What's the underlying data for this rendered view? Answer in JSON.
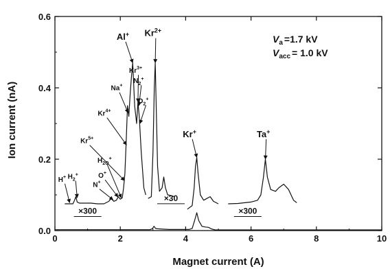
{
  "chart_data": {
    "type": "line",
    "xlabel": "Magnet current  (A)",
    "ylabel": "Ion current  (nA)",
    "xlim": [
      0,
      10
    ],
    "ylim": [
      0,
      0.6
    ],
    "x_ticks": [
      "0",
      "2",
      "4",
      "6",
      "8",
      "10"
    ],
    "y_ticks": [
      "0.0",
      "0.2",
      "0.4",
      "0.6"
    ],
    "grid": false,
    "parameters": [
      {
        "symbol": "V",
        "sub": "a",
        "value": "=1.7 kV"
      },
      {
        "symbol": "V",
        "sub": "acc",
        "value": "= 1.0 kV"
      }
    ],
    "series": [
      {
        "values": [
          [
            0.0,
            0.0025
          ],
          [
            2.9,
            0.0025
          ],
          [
            2.98,
            0.005
          ],
          [
            3.03,
            0.012
          ],
          [
            3.08,
            0.006
          ],
          [
            3.14,
            0.005
          ],
          [
            3.3,
            0.004
          ],
          [
            3.5,
            0.003
          ],
          [
            4.1,
            0.003
          ],
          [
            4.2,
            0.006
          ],
          [
            4.28,
            0.03
          ],
          [
            4.34,
            0.05
          ],
          [
            4.4,
            0.028
          ],
          [
            4.5,
            0.012
          ],
          [
            4.6,
            0.01
          ],
          [
            4.7,
            0.009
          ],
          [
            4.78,
            0.005
          ],
          [
            4.9,
            0.002
          ],
          [
            10.0,
            0.002
          ]
        ]
      },
      {
        "values": [
          [
            0.3,
            0.075
          ],
          [
            0.55,
            0.075
          ],
          [
            0.6,
            0.085
          ],
          [
            0.64,
            0.095
          ],
          [
            0.68,
            0.08
          ],
          [
            0.75,
            0.077
          ],
          [
            1.1,
            0.077
          ],
          [
            1.3,
            0.075
          ],
          [
            1.5,
            0.075
          ],
          [
            1.65,
            0.082
          ],
          [
            1.72,
            0.09
          ],
          [
            1.8,
            0.082
          ],
          [
            1.88,
            0.085
          ],
          [
            1.94,
            0.095
          ],
          [
            2.0,
            0.088
          ],
          [
            2.06,
            0.092
          ],
          [
            2.1,
            0.12
          ],
          [
            2.14,
            0.16
          ],
          [
            2.18,
            0.25
          ],
          [
            2.22,
            0.35
          ],
          [
            2.26,
            0.32
          ],
          [
            2.3,
            0.38
          ],
          [
            2.34,
            0.43
          ],
          [
            2.38,
            0.47
          ],
          [
            2.44,
            0.35
          ],
          [
            2.5,
            0.3
          ],
          [
            2.54,
            0.36
          ],
          [
            2.58,
            0.32
          ],
          [
            2.64,
            0.22
          ],
          [
            2.72,
            0.12
          ],
          [
            2.78,
            0.1
          ]
        ]
      },
      {
        "values": [
          [
            2.85,
            0.09
          ],
          [
            2.95,
            0.095
          ],
          [
            3.0,
            0.22
          ],
          [
            3.04,
            0.4
          ],
          [
            3.07,
            0.47
          ],
          [
            3.1,
            0.34
          ],
          [
            3.14,
            0.18
          ],
          [
            3.2,
            0.11
          ],
          [
            3.28,
            0.12
          ],
          [
            3.33,
            0.15
          ],
          [
            3.38,
            0.12
          ],
          [
            3.45,
            0.1
          ],
          [
            3.55,
            0.098
          ],
          [
            3.65,
            0.095
          ]
        ]
      },
      {
        "values": [
          [
            4.05,
            0.06
          ],
          [
            4.2,
            0.07
          ],
          [
            4.26,
            0.12
          ],
          [
            4.3,
            0.18
          ],
          [
            4.34,
            0.205
          ],
          [
            4.38,
            0.16
          ],
          [
            4.45,
            0.1
          ],
          [
            4.55,
            0.085
          ],
          [
            4.65,
            0.09
          ],
          [
            4.75,
            0.095
          ],
          [
            4.85,
            0.082
          ],
          [
            5.0,
            0.075
          ]
        ]
      },
      {
        "values": [
          [
            5.3,
            0.075
          ],
          [
            5.6,
            0.076
          ],
          [
            6.0,
            0.08
          ],
          [
            6.2,
            0.085
          ],
          [
            6.3,
            0.1
          ],
          [
            6.38,
            0.15
          ],
          [
            6.44,
            0.2
          ],
          [
            6.5,
            0.15
          ],
          [
            6.6,
            0.115
          ],
          [
            6.75,
            0.11
          ],
          [
            6.85,
            0.12
          ],
          [
            7.0,
            0.13
          ],
          [
            7.15,
            0.115
          ],
          [
            7.3,
            0.085
          ],
          [
            7.4,
            0.078
          ]
        ]
      }
    ],
    "magnifiers": [
      {
        "text": "×300",
        "x": 1.0,
        "y": 0.047
      },
      {
        "text": "×30",
        "x": 3.55,
        "y": 0.083
      },
      {
        "text": "×300",
        "x": 5.9,
        "y": 0.047
      }
    ],
    "annotations": [
      {
        "base": "H",
        "sup": "+",
        "sub": "",
        "tx": 0.22,
        "ty": 0.137,
        "ax": 0.45,
        "ay": 0.078
      },
      {
        "base": "H",
        "sup": "+",
        "sub": "2",
        "tx": 0.55,
        "ty": 0.145,
        "ax": 0.68,
        "ay": 0.092
      },
      {
        "base": "N",
        "sup": "+",
        "sub": "",
        "tx": 1.28,
        "ty": 0.122,
        "ax": 1.78,
        "ay": 0.086
      },
      {
        "base": "O",
        "sup": "+",
        "sub": "",
        "tx": 1.45,
        "ty": 0.148,
        "ax": 1.93,
        "ay": 0.094
      },
      {
        "base": "H",
        "sup": "+",
        "sub": "2O",
        "tx": 1.52,
        "ty": 0.19,
        "ax": 2.03,
        "ay": 0.092
      },
      {
        "base": "Kr",
        "sup": "5+",
        "sub": "",
        "tx": 0.98,
        "ty": 0.245,
        "ax": 2.13,
        "ay": 0.14
      },
      {
        "base": "Kr",
        "sup": "4+",
        "sub": "",
        "tx": 1.51,
        "ty": 0.322,
        "ax": 2.19,
        "ay": 0.24
      },
      {
        "base": "Na",
        "sup": "+",
        "sub": "",
        "tx": 1.89,
        "ty": 0.393,
        "ax": 2.24,
        "ay": 0.33
      },
      {
        "base": "Al",
        "sup": "+",
        "sub": "",
        "tx": 2.08,
        "ty": 0.535,
        "ax": 2.38,
        "ay": 0.47
      },
      {
        "base": "Kr",
        "sup": "3+",
        "sub": "",
        "tx": 2.47,
        "ty": 0.442,
        "ax": 2.54,
        "ay": 0.36
      },
      {
        "base": "N",
        "sup": "+",
        "sub": "2",
        "tx": 2.56,
        "ty": 0.413,
        "ax": 2.57,
        "ay": 0.35
      },
      {
        "base": "O",
        "sup": "+",
        "sub": "2",
        "tx": 2.7,
        "ty": 0.357,
        "ax": 2.6,
        "ay": 0.3
      },
      {
        "base": "Kr",
        "sup": "2+",
        "sub": "",
        "tx": 3.0,
        "ty": 0.545,
        "ax": 3.07,
        "ay": 0.47
      },
      {
        "base": "Kr",
        "sup": "+",
        "sub": "",
        "tx": 4.12,
        "ty": 0.262,
        "ax": 4.34,
        "ay": 0.205
      },
      {
        "base": "Ta",
        "sup": "+",
        "sub": "",
        "tx": 6.38,
        "ty": 0.262,
        "ax": 6.44,
        "ay": 0.2
      }
    ]
  }
}
